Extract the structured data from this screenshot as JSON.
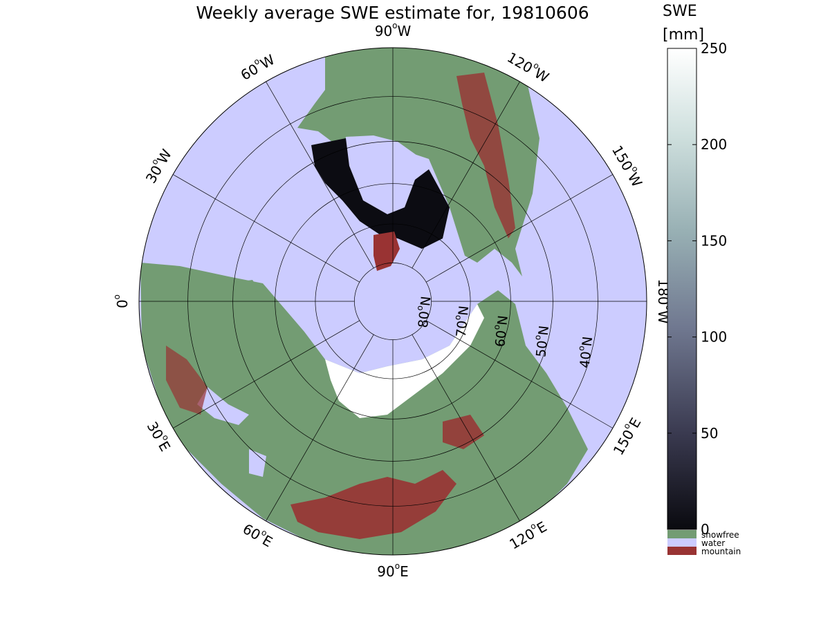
{
  "title": "Weekly average SWE estimate for, 19810606",
  "colorbar": {
    "label_line1": "SWE",
    "label_line2": "[mm]",
    "ticks": [
      0,
      50,
      100,
      150,
      200,
      250
    ],
    "vmin": 0,
    "vmax": 250,
    "gradient_colors": [
      "#0a0a0f",
      "#3a3a50",
      "#707890",
      "#98b0b4",
      "#cfe0de",
      "#ffffff"
    ],
    "categories": [
      {
        "name": "snowfree",
        "color": "#739c73"
      },
      {
        "name": "water",
        "color": "#ccccff"
      },
      {
        "name": "mountain",
        "color": "#993333"
      }
    ]
  },
  "map": {
    "projection": "north-polar stereographic",
    "outer_latitude": 30,
    "latitude_circles": [
      40,
      50,
      60,
      70,
      80
    ],
    "longitude_lines": [
      0,
      30,
      60,
      90,
      120,
      150,
      180,
      -150,
      -120,
      -90,
      -60,
      -30
    ],
    "longitude_labels": [
      {
        "lon": -90,
        "deg": "90",
        "dir": "W"
      },
      {
        "lon": -120,
        "deg": "120",
        "dir": "W"
      },
      {
        "lon": -150,
        "deg": "150",
        "dir": "W"
      },
      {
        "lon": 180,
        "deg": "180",
        "dir": "W"
      },
      {
        "lon": 150,
        "deg": "150",
        "dir": "E"
      },
      {
        "lon": 120,
        "deg": "120",
        "dir": "E"
      },
      {
        "lon": 90,
        "deg": "90",
        "dir": "E"
      },
      {
        "lon": 60,
        "deg": "60",
        "dir": "E"
      },
      {
        "lon": 30,
        "deg": "30",
        "dir": "E"
      },
      {
        "lon": 0,
        "deg": "0",
        "dir": ""
      },
      {
        "lon": -30,
        "deg": "30",
        "dir": "W"
      },
      {
        "lon": -60,
        "deg": "60",
        "dir": "W"
      }
    ],
    "latitude_labels": [
      {
        "deg": "40",
        "dir": "N"
      },
      {
        "deg": "50",
        "dir": "N"
      },
      {
        "deg": "60",
        "dir": "N"
      },
      {
        "deg": "70",
        "dir": "N"
      },
      {
        "deg": "80",
        "dir": "N"
      }
    ],
    "colors": {
      "water": "#ccccff",
      "land": "#739c73",
      "mountain": "#993333",
      "snow_deep": "#0c0c12",
      "snow_high": "#ffffff"
    }
  }
}
